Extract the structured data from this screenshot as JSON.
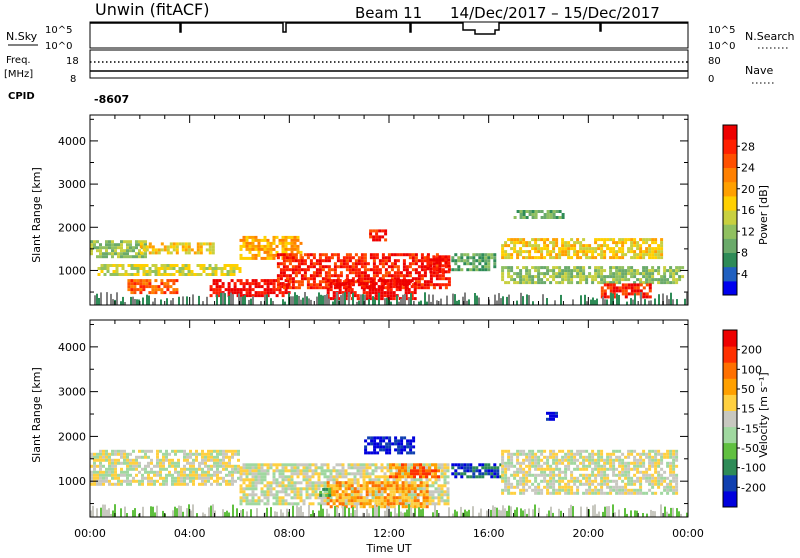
{
  "header": {
    "site": "Unwin (fitACF)",
    "beam": "Beam 11",
    "date_range": "14/Dec/2017 – 15/Dec/2017"
  },
  "strips": {
    "nsky": {
      "label": "N.Sky",
      "ticks": [
        "10^5",
        "10^0"
      ],
      "right_ticks": [
        "10^5",
        "10^0"
      ],
      "right_label": "N.Search"
    },
    "freq": {
      "label_line1": "Freq.",
      "label_line2": "[MHz]",
      "ticks": [
        "18",
        "8"
      ],
      "right_ticks": [
        "80",
        "0"
      ],
      "right_label": "Nave"
    },
    "cpid": {
      "label": "CPID",
      "value": "-8607"
    }
  },
  "time_axis": {
    "label": "Time UT",
    "ticks": [
      "00:00",
      "04:00",
      "08:00",
      "12:00",
      "16:00",
      "20:00",
      "00:00"
    ]
  },
  "chart_data": [
    {
      "type": "heatmap",
      "panel": "power",
      "xlabel": "Time UT",
      "ylabel": "Slant Range [km]",
      "xlim": [
        0,
        24
      ],
      "ylim": [
        200,
        4600
      ],
      "yticks": [
        1000,
        2000,
        3000,
        4000
      ],
      "colorbar": {
        "label": "Power [dB]",
        "ticks": [
          "28",
          "24",
          "20",
          "16",
          "12",
          "8",
          "4"
        ],
        "colors": [
          "#0000ee",
          "#2060c0",
          "#2e8b57",
          "#6aaa6a",
          "#90c060",
          "#c8d040",
          "#ffd000",
          "#ffa000",
          "#ff8000",
          "#ff5000",
          "#ff2000",
          "#ee0000"
        ]
      },
      "regions": [
        {
          "t0": 0.0,
          "t1": 2.2,
          "r0": 1350,
          "r1": 1700,
          "level": 4
        },
        {
          "t0": 2.0,
          "t1": 5.0,
          "r0": 1400,
          "r1": 1650,
          "level": 6
        },
        {
          "t0": 0.3,
          "t1": 6.0,
          "r0": 900,
          "r1": 1150,
          "level": 5
        },
        {
          "t0": 1.5,
          "t1": 3.5,
          "r0": 500,
          "r1": 800,
          "level": 9
        },
        {
          "t0": 4.8,
          "t1": 8.0,
          "r0": 400,
          "r1": 800,
          "level": 11
        },
        {
          "t0": 6.0,
          "t1": 8.5,
          "r0": 1300,
          "r1": 1800,
          "level": 7
        },
        {
          "t0": 7.5,
          "t1": 14.4,
          "r0": 600,
          "r1": 1400,
          "level": 10
        },
        {
          "t0": 9.5,
          "t1": 13.0,
          "r0": 350,
          "r1": 800,
          "level": 11
        },
        {
          "t0": 11.2,
          "t1": 11.9,
          "r0": 1700,
          "r1": 1950,
          "level": 10
        },
        {
          "t0": 13.5,
          "t1": 14.4,
          "r0": 1000,
          "r1": 1350,
          "level": 11
        },
        {
          "t0": 14.5,
          "t1": 16.3,
          "r0": 1050,
          "r1": 1400,
          "level": 3
        },
        {
          "t0": 16.5,
          "t1": 22.9,
          "r0": 1300,
          "r1": 1750,
          "level": 6
        },
        {
          "t0": 16.5,
          "t1": 23.8,
          "r0": 700,
          "r1": 1100,
          "level": 4
        },
        {
          "t0": 20.5,
          "t1": 22.5,
          "r0": 400,
          "r1": 700,
          "level": 10
        },
        {
          "t0": 17.0,
          "t1": 19.0,
          "r0": 2200,
          "r1": 2400,
          "level": 3
        }
      ]
    },
    {
      "type": "heatmap",
      "panel": "velocity",
      "xlabel": "Time UT",
      "ylabel": "Slant Range [km]",
      "xlim": [
        0,
        24
      ],
      "ylim": [
        200,
        4600
      ],
      "yticks": [
        1000,
        2000,
        3000,
        4000
      ],
      "colorbar": {
        "label": "Velocity [m s⁻¹]",
        "ticks": [
          "200",
          "100",
          "50",
          "15",
          "-15",
          "-50",
          "-100",
          "-200"
        ],
        "colors": [
          "#0000dd",
          "#1040b0",
          "#2e8b57",
          "#60c040",
          "#a0d8a0",
          "#c8c8c0",
          "#ffd040",
          "#ffa000",
          "#ff7000",
          "#ff3000",
          "#ee0000"
        ]
      },
      "regions": [
        {
          "t0": 0.0,
          "t1": 6.0,
          "r0": 900,
          "r1": 1700,
          "level": 5
        },
        {
          "t0": 6.0,
          "t1": 14.4,
          "r0": 500,
          "r1": 1400,
          "level": 5
        },
        {
          "t0": 9.5,
          "t1": 13.5,
          "r0": 400,
          "r1": 1000,
          "level": 7
        },
        {
          "t0": 11.0,
          "t1": 13.0,
          "r0": 1600,
          "r1": 2000,
          "level": 0
        },
        {
          "t0": 12.0,
          "t1": 14.0,
          "r0": 1100,
          "r1": 1400,
          "level": 8
        },
        {
          "t0": 14.5,
          "t1": 16.5,
          "r0": 1100,
          "r1": 1400,
          "level": 1
        },
        {
          "t0": 16.5,
          "t1": 23.5,
          "r0": 700,
          "r1": 1700,
          "level": 5
        },
        {
          "t0": 18.3,
          "t1": 18.7,
          "r0": 2350,
          "r1": 2550,
          "level": 0
        },
        {
          "t0": 9.2,
          "t1": 9.6,
          "r0": 650,
          "r1": 850,
          "level": 3
        }
      ]
    }
  ]
}
